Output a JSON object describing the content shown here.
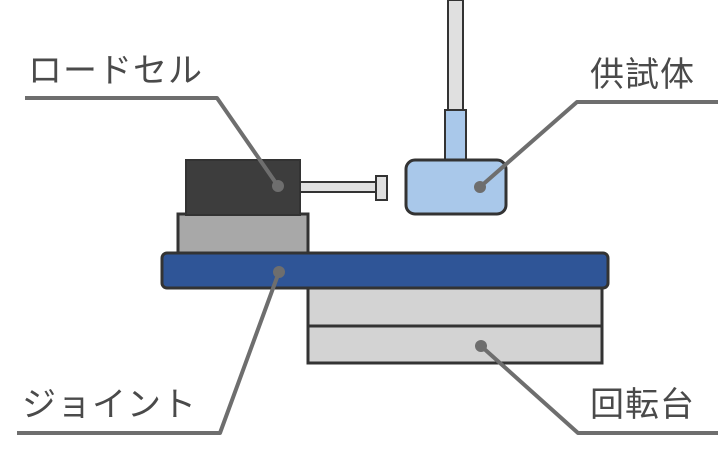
{
  "labels": {
    "load_cell": "ロードセル",
    "specimen": "供試体",
    "joint": "ジョイント",
    "turntable": "回転台"
  },
  "colors": {
    "load_cell_body": "#3d3d3d",
    "load_cell_base": "#a8a8a8",
    "joint_plate": "#2f5597",
    "turntable": "#d3d3d3",
    "specimen": "#a9c8ea",
    "rod": "#e0e0e0",
    "outline": "#333333",
    "leader": "#6e6e6e",
    "label_text": "#4a4a4a"
  }
}
